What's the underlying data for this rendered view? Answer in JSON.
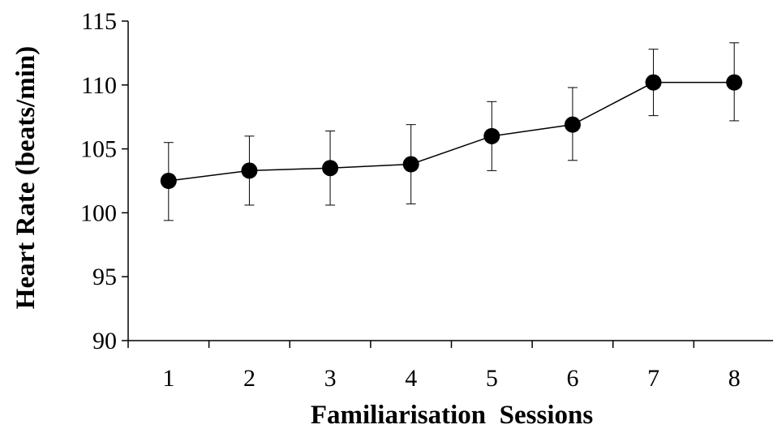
{
  "chart_data": {
    "type": "line",
    "xlabel": "Familiarisation  Sessions",
    "ylabel": "Heart Rate (beats/min)",
    "ylim": [
      90,
      115
    ],
    "yticks": [
      90,
      95,
      100,
      105,
      110,
      115
    ],
    "categories": [
      "1",
      "2",
      "3",
      "4",
      "5",
      "6",
      "7",
      "8"
    ],
    "series": [
      {
        "values": [
          102.5,
          103.3,
          103.5,
          103.8,
          106.0,
          106.9,
          110.2,
          110.2
        ],
        "error_upper": [
          105.5,
          106.0,
          106.4,
          106.9,
          108.7,
          109.8,
          112.8,
          113.3
        ],
        "error_lower": [
          99.4,
          100.6,
          100.6,
          100.7,
          103.3,
          104.1,
          107.6,
          107.2
        ],
        "color": "#000000",
        "marker": "filled-circle"
      }
    ],
    "grid": false,
    "legend": "none"
  }
}
